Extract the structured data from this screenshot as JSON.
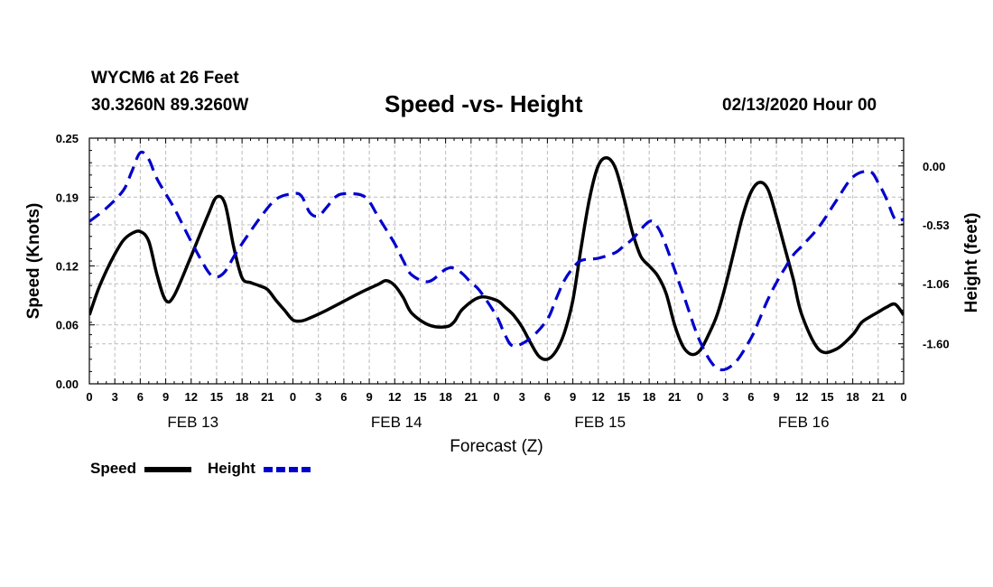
{
  "header": {
    "station": "WYCM6 at 26 Feet",
    "coords": "30.3260N 89.3260W",
    "title": "Speed -vs- Height",
    "date": "02/13/2020 Hour 00"
  },
  "chart_data": {
    "type": "line",
    "title": "Speed -vs- Height",
    "xlabel": "Forecast (Z)",
    "ylabel": "Speed (Knots)",
    "y2label": "Height (feet)",
    "grid": true,
    "legend_position": "bottom-left",
    "xlim": [
      0,
      96
    ],
    "ylim": [
      0,
      0.25
    ],
    "y2lim": [
      -1.96,
      0.25
    ],
    "x_ticks": [
      0,
      3,
      6,
      9,
      12,
      15,
      18,
      21,
      24,
      27,
      30,
      33,
      36,
      39,
      42,
      45,
      48,
      51,
      54,
      57,
      60,
      63,
      66,
      69,
      72,
      75,
      78,
      81,
      84,
      87,
      90,
      93,
      96
    ],
    "x_tick_labels": [
      "0",
      "3",
      "6",
      "9",
      "12",
      "15",
      "18",
      "21",
      "0",
      "3",
      "6",
      "9",
      "12",
      "15",
      "18",
      "21",
      "0",
      "3",
      "6",
      "9",
      "12",
      "15",
      "18",
      "21",
      "0",
      "3",
      "6",
      "9",
      "12",
      "15",
      "18",
      "21",
      "0"
    ],
    "day_labels": [
      {
        "x": 12,
        "label": "FEB 13"
      },
      {
        "x": 36,
        "label": "FEB 14"
      },
      {
        "x": 60,
        "label": "FEB 15"
      },
      {
        "x": 84,
        "label": "FEB 16"
      }
    ],
    "y_ticks": [
      0.0,
      0.06,
      0.12,
      0.19,
      0.25
    ],
    "y_tick_labels": [
      "0.00",
      "0.06",
      "0.12",
      "0.19",
      "0.25"
    ],
    "y2_ticks": [
      0.0,
      -0.53,
      -1.06,
      -1.6
    ],
    "y2_tick_labels": [
      "0.00",
      "-0.53",
      "-1.06",
      "-1.60"
    ],
    "series": [
      {
        "name": "Speed",
        "axis": "left",
        "color": "#000000",
        "dash": "solid",
        "x": [
          0,
          1,
          2,
          3,
          4,
          5,
          6,
          7,
          8,
          9,
          10,
          12,
          14,
          15,
          16,
          17,
          18,
          19,
          20,
          21,
          22,
          23,
          24,
          25,
          26,
          28,
          30,
          32,
          34,
          35,
          36,
          37,
          38,
          40,
          42,
          43,
          44,
          46,
          48,
          49,
          50,
          51,
          52,
          53,
          54,
          55,
          56,
          57,
          58,
          59,
          60,
          61,
          62,
          63,
          64,
          65,
          66,
          67,
          68,
          69,
          70,
          71,
          72,
          73,
          74,
          75,
          76,
          77,
          78,
          79,
          80,
          81,
          82,
          83,
          84,
          86,
          88,
          90,
          91,
          92,
          93,
          94,
          95,
          96
        ],
        "values": [
          0.07,
          0.095,
          0.115,
          0.132,
          0.146,
          0.153,
          0.155,
          0.145,
          0.11,
          0.085,
          0.09,
          0.13,
          0.172,
          0.19,
          0.183,
          0.14,
          0.108,
          0.103,
          0.1,
          0.096,
          0.085,
          0.075,
          0.065,
          0.064,
          0.067,
          0.075,
          0.084,
          0.093,
          0.101,
          0.105,
          0.1,
          0.088,
          0.072,
          0.06,
          0.058,
          0.063,
          0.076,
          0.088,
          0.085,
          0.078,
          0.07,
          0.058,
          0.042,
          0.028,
          0.025,
          0.033,
          0.052,
          0.085,
          0.14,
          0.19,
          0.222,
          0.23,
          0.22,
          0.19,
          0.155,
          0.13,
          0.12,
          0.11,
          0.092,
          0.06,
          0.038,
          0.03,
          0.034,
          0.05,
          0.07,
          0.1,
          0.135,
          0.17,
          0.195,
          0.205,
          0.198,
          0.17,
          0.138,
          0.106,
          0.07,
          0.035,
          0.035,
          0.05,
          0.062,
          0.068,
          0.073,
          0.078,
          0.081,
          0.07
        ]
      },
      {
        "name": "Height",
        "axis": "right",
        "color": "#0000cc",
        "dash": "dashed",
        "x": [
          0,
          2,
          4,
          5,
          6,
          7,
          8,
          10,
          12,
          14,
          15,
          16,
          17,
          18,
          20,
          22,
          24,
          25,
          26,
          27,
          28,
          29,
          30,
          32,
          33,
          34,
          36,
          37,
          38,
          40,
          42,
          43,
          44,
          45,
          46,
          48,
          49,
          50,
          52,
          54,
          55,
          56,
          57,
          58,
          60,
          62,
          63,
          64,
          66,
          67,
          68,
          70,
          72,
          74,
          76,
          78,
          79,
          80,
          81,
          82,
          83,
          84,
          86,
          88,
          90,
          92,
          93,
          94,
          95,
          96
        ],
        "values": [
          -0.5,
          -0.38,
          -0.22,
          -0.05,
          0.12,
          0.06,
          -0.12,
          -0.38,
          -0.68,
          -0.95,
          -1.0,
          -0.95,
          -0.82,
          -0.7,
          -0.48,
          -0.3,
          -0.25,
          -0.27,
          -0.42,
          -0.45,
          -0.37,
          -0.28,
          -0.25,
          -0.26,
          -0.32,
          -0.45,
          -0.7,
          -0.85,
          -0.98,
          -1.04,
          -0.93,
          -0.92,
          -0.97,
          -1.05,
          -1.12,
          -1.35,
          -1.52,
          -1.62,
          -1.55,
          -1.38,
          -1.2,
          -1.03,
          -0.92,
          -0.85,
          -0.83,
          -0.78,
          -0.72,
          -0.66,
          -0.5,
          -0.55,
          -0.72,
          -1.15,
          -1.58,
          -1.82,
          -1.78,
          -1.55,
          -1.38,
          -1.2,
          -1.05,
          -0.92,
          -0.8,
          -0.72,
          -0.55,
          -0.32,
          -0.1,
          -0.05,
          -0.15,
          -0.3,
          -0.48,
          -0.48
        ]
      }
    ]
  },
  "legend": {
    "speed_label": "Speed",
    "height_label": "Height"
  }
}
